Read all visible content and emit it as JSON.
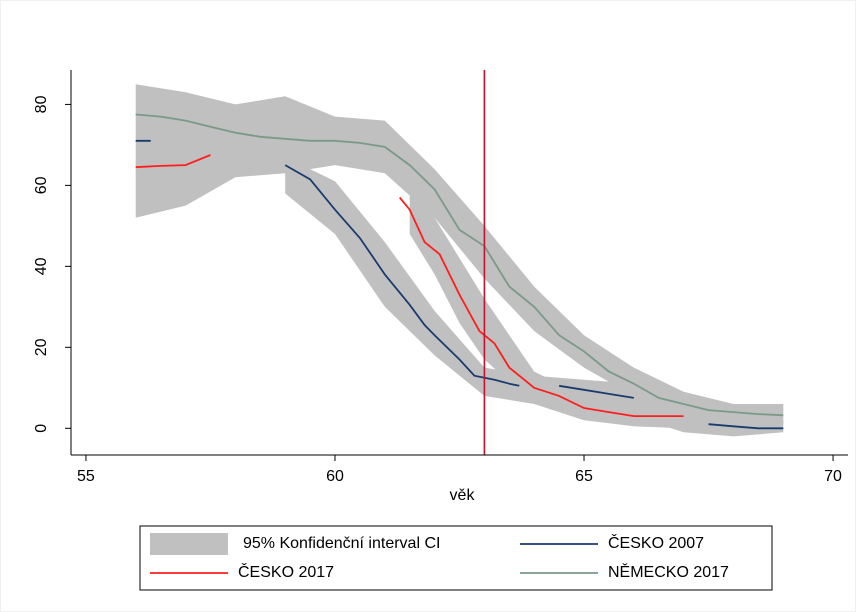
{
  "chart_data": {
    "type": "line",
    "x_label": "věk",
    "xlim": [
      54.7,
      70.3
    ],
    "xticks": [
      55,
      60,
      65,
      70
    ],
    "ylim": [
      -6.6,
      88.5
    ],
    "yticks": [
      0,
      20,
      40,
      60,
      80
    ],
    "reference_line": {
      "x": 63,
      "color": "#c8102e"
    },
    "ci": {
      "name": "95% Konfidenční interval CI",
      "color": "#c0c0c0",
      "bands": [
        {
          "x": [
            56,
            57,
            58,
            59,
            60,
            61,
            62,
            63,
            64,
            65,
            66,
            67,
            68,
            69
          ],
          "upper": [
            85,
            83,
            80,
            82,
            77,
            76,
            64,
            50,
            35,
            23,
            15,
            9,
            6,
            6
          ],
          "lower": [
            52,
            55,
            62,
            63,
            65,
            63,
            52,
            37,
            24,
            15,
            8,
            4,
            1.5,
            1
          ]
        },
        {
          "x": [
            59,
            60,
            61,
            62,
            63,
            64,
            65,
            66,
            67,
            68,
            69
          ],
          "upper": [
            67,
            61,
            46,
            29,
            15,
            13,
            12,
            11,
            4,
            3,
            2
          ],
          "lower": [
            58,
            48,
            30,
            18,
            8,
            6,
            6,
            3,
            -1,
            -2,
            -1
          ]
        },
        {
          "x": [
            61.5,
            62,
            62.5,
            63,
            64,
            65,
            66,
            67
          ],
          "upper": [
            62,
            52,
            42,
            32,
            14,
            8,
            5,
            5
          ],
          "lower": [
            48,
            38,
            26,
            17,
            6,
            2,
            0.5,
            0
          ]
        }
      ]
    },
    "series": [
      {
        "name": "ČESKO 2007",
        "color": "#1a3b6e",
        "x": [
          56,
          56.3,
          57,
          59,
          59.5,
          60,
          60.5,
          61,
          61.5,
          61.8,
          62,
          62.5,
          62.8,
          63.2,
          63.5,
          63.7,
          64,
          64.5,
          65,
          65.5,
          66,
          66.5,
          67.5,
          68,
          68.5,
          69
        ],
        "values": [
          71,
          71,
          null,
          65,
          61.5,
          54,
          47,
          38,
          30.5,
          25.5,
          23,
          17,
          13,
          12,
          11,
          10.5,
          null,
          10.5,
          9.5,
          8.5,
          7.5,
          null,
          1,
          0.5,
          0,
          0
        ]
      },
      {
        "name": "ČESKO 2017",
        "color": "#ff1e1e",
        "x": [
          56,
          56.5,
          57,
          57.5,
          59,
          61.3,
          61.5,
          61.8,
          62.1,
          62.5,
          62.9,
          63.2,
          63.5,
          64,
          64.5,
          65,
          65.5,
          66,
          66.5,
          67
        ],
        "values": [
          64.5,
          64.8,
          65,
          67.5,
          null,
          57,
          54,
          46,
          43,
          33,
          24,
          21,
          15,
          10,
          8,
          5,
          4,
          3,
          3,
          3
        ]
      },
      {
        "name": "NĚMECKO 2017",
        "color": "#7a9a88",
        "x": [
          56,
          56.5,
          57,
          57.5,
          58,
          58.5,
          59,
          59.5,
          60,
          60.5,
          61,
          61.5,
          62,
          62.5,
          63,
          63.5,
          64,
          64.5,
          65,
          65.5,
          66,
          66.5,
          67,
          67.5,
          68,
          68.5,
          69
        ],
        "values": [
          77.5,
          77,
          76,
          74.5,
          73,
          72,
          71.5,
          71,
          71,
          70.5,
          69.5,
          65,
          59,
          49,
          45,
          35,
          30,
          23,
          19,
          14,
          11,
          7.5,
          6,
          4.5,
          4,
          3.5,
          3.2
        ]
      }
    ]
  }
}
